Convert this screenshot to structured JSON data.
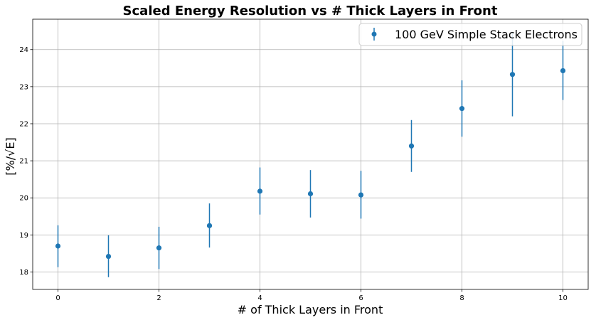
{
  "chart_data": {
    "type": "scatter",
    "title": "Scaled Energy Resolution vs # Thick Layers in Front",
    "xlabel": "# of Thick Layers in Front",
    "ylabel": "[%/√E]",
    "xlim": [
      -0.5,
      10.5
    ],
    "ylim": [
      17.53,
      24.82
    ],
    "xticks": [
      0,
      2,
      4,
      6,
      8,
      10
    ],
    "yticks": [
      18,
      19,
      20,
      21,
      22,
      23,
      24
    ],
    "grid": true,
    "legend_position": "top-right",
    "series": [
      {
        "name": "100 GeV Simple Stack Electrons",
        "color": "#1f77b4",
        "marker": "circle",
        "error_bars": true,
        "points": [
          {
            "x": 0,
            "y": 18.7,
            "yerr_low": 18.13,
            "yerr_high": 19.26
          },
          {
            "x": 1,
            "y": 18.42,
            "yerr_low": 17.86,
            "yerr_high": 18.99
          },
          {
            "x": 2,
            "y": 18.65,
            "yerr_low": 18.08,
            "yerr_high": 19.22
          },
          {
            "x": 3,
            "y": 19.25,
            "yerr_low": 18.66,
            "yerr_high": 19.85
          },
          {
            "x": 4,
            "y": 20.18,
            "yerr_low": 19.55,
            "yerr_high": 20.82
          },
          {
            "x": 5,
            "y": 20.11,
            "yerr_low": 19.47,
            "yerr_high": 20.75
          },
          {
            "x": 6,
            "y": 20.08,
            "yerr_low": 19.44,
            "yerr_high": 20.73
          },
          {
            "x": 7,
            "y": 21.4,
            "yerr_low": 20.7,
            "yerr_high": 22.1
          },
          {
            "x": 8,
            "y": 22.41,
            "yerr_low": 21.65,
            "yerr_high": 23.17
          },
          {
            "x": 9,
            "y": 23.33,
            "yerr_low": 22.2,
            "yerr_high": 24.46
          },
          {
            "x": 10,
            "y": 23.43,
            "yerr_low": 22.64,
            "yerr_high": 24.23
          }
        ]
      }
    ]
  }
}
